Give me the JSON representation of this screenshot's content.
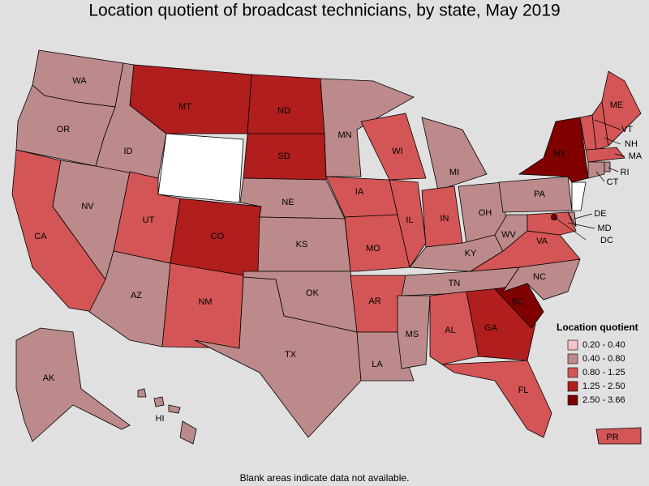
{
  "title": "Location quotient of broadcast technicians, by state, May 2019",
  "footnote": "Blank areas indicate data not available.",
  "legend": {
    "title": "Location quotient",
    "items": [
      {
        "label": "0.20 - 0.40",
        "color": "#f5c4c8"
      },
      {
        "label": "0.40 - 0.80",
        "color": "#bc8a8a"
      },
      {
        "label": "0.80 - 1.25",
        "color": "#d45555"
      },
      {
        "label": "1.25 - 2.50",
        "color": "#b01e1e"
      },
      {
        "label": "2.50 - 3.66",
        "color": "#800000"
      }
    ]
  },
  "states": [
    {
      "name": "WA",
      "color": "#bc8a8a"
    },
    {
      "name": "OR",
      "color": "#bc8a8a"
    },
    {
      "name": "CA",
      "color": "#d45555"
    },
    {
      "name": "NV",
      "color": "#bc8a8a"
    },
    {
      "name": "ID",
      "color": "#bc8a8a"
    },
    {
      "name": "MT",
      "color": "#b01e1e"
    },
    {
      "name": "UT",
      "color": "#d45555"
    },
    {
      "name": "AZ",
      "color": "#bc8a8a"
    },
    {
      "name": "CO",
      "color": "#b01e1e"
    },
    {
      "name": "NM",
      "color": "#d45555"
    },
    {
      "name": "ND",
      "color": "#b01e1e"
    },
    {
      "name": "SD",
      "color": "#b01e1e"
    },
    {
      "name": "NE",
      "color": "#bc8a8a"
    },
    {
      "name": "KS",
      "color": "#bc8a8a"
    },
    {
      "name": "OK",
      "color": "#bc8a8a"
    },
    {
      "name": "TX",
      "color": "#bc8a8a"
    },
    {
      "name": "MN",
      "color": "#bc8a8a"
    },
    {
      "name": "IA",
      "color": "#d45555"
    },
    {
      "name": "MO",
      "color": "#d45555"
    },
    {
      "name": "AR",
      "color": "#d45555"
    },
    {
      "name": "LA",
      "color": "#bc8a8a"
    },
    {
      "name": "WI",
      "color": "#d45555"
    },
    {
      "name": "IL",
      "color": "#d45555"
    },
    {
      "name": "MI",
      "color": "#bc8a8a"
    },
    {
      "name": "IN",
      "color": "#d45555"
    },
    {
      "name": "OH",
      "color": "#bc8a8a"
    },
    {
      "name": "KY",
      "color": "#bc8a8a"
    },
    {
      "name": "TN",
      "color": "#bc8a8a"
    },
    {
      "name": "MS",
      "color": "#bc8a8a"
    },
    {
      "name": "AL",
      "color": "#d45555"
    },
    {
      "name": "GA",
      "color": "#b01e1e"
    },
    {
      "name": "FL",
      "color": "#d45555"
    },
    {
      "name": "SC",
      "color": "#800000"
    },
    {
      "name": "NC",
      "color": "#bc8a8a"
    },
    {
      "name": "VA",
      "color": "#d45555"
    },
    {
      "name": "WV",
      "color": "#bc8a8a"
    },
    {
      "name": "PA",
      "color": "#bc8a8a"
    },
    {
      "name": "NY",
      "color": "#800000"
    },
    {
      "name": "MD",
      "color": "#d45555"
    },
    {
      "name": "DE",
      "color": "#bc8a8a"
    },
    {
      "name": "DC",
      "color": "#800000"
    },
    {
      "name": "VT",
      "color": "#d45555"
    },
    {
      "name": "NH",
      "color": "#d45555"
    },
    {
      "name": "ME",
      "color": "#d45555"
    },
    {
      "name": "MA",
      "color": "#d45555"
    },
    {
      "name": "CT",
      "color": "#bc8a8a"
    },
    {
      "name": "RI",
      "color": "#bc8a8a"
    },
    {
      "name": "AK",
      "color": "#bc8a8a"
    },
    {
      "name": "HI",
      "color": "#bc8a8a"
    },
    {
      "name": "PR",
      "color": "#d45555"
    }
  ]
}
